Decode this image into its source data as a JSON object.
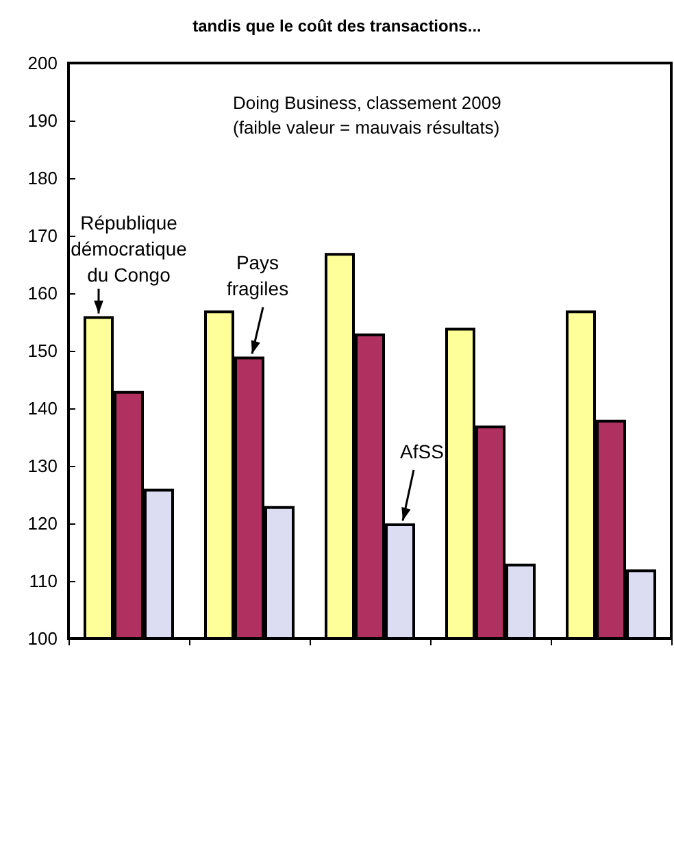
{
  "chart_data": {
    "type": "bar",
    "title": "tandis que le coût des transactions...",
    "categories": [
      null,
      null,
      null,
      null,
      null
    ],
    "series": [
      {
        "name": "République démocratique du Congo",
        "color": "#ffff99",
        "values": [
          156,
          157,
          167,
          154,
          157
        ]
      },
      {
        "name": "Pays fragiles",
        "color": "#b03060",
        "values": [
          143,
          149,
          153,
          137,
          138
        ]
      },
      {
        "name": "AfSS",
        "color": "#dcdcf2",
        "values": [
          126,
          123,
          120,
          113,
          112
        ]
      }
    ],
    "annotations": [
      "Doing Business, classement 2009\n(faible valeur = mauvais résultats)"
    ],
    "ylim": [
      100,
      200
    ],
    "yticks": [
      100,
      110,
      120,
      130,
      140,
      150,
      160,
      170,
      180,
      190,
      200
    ],
    "grid": false,
    "legend": false
  }
}
